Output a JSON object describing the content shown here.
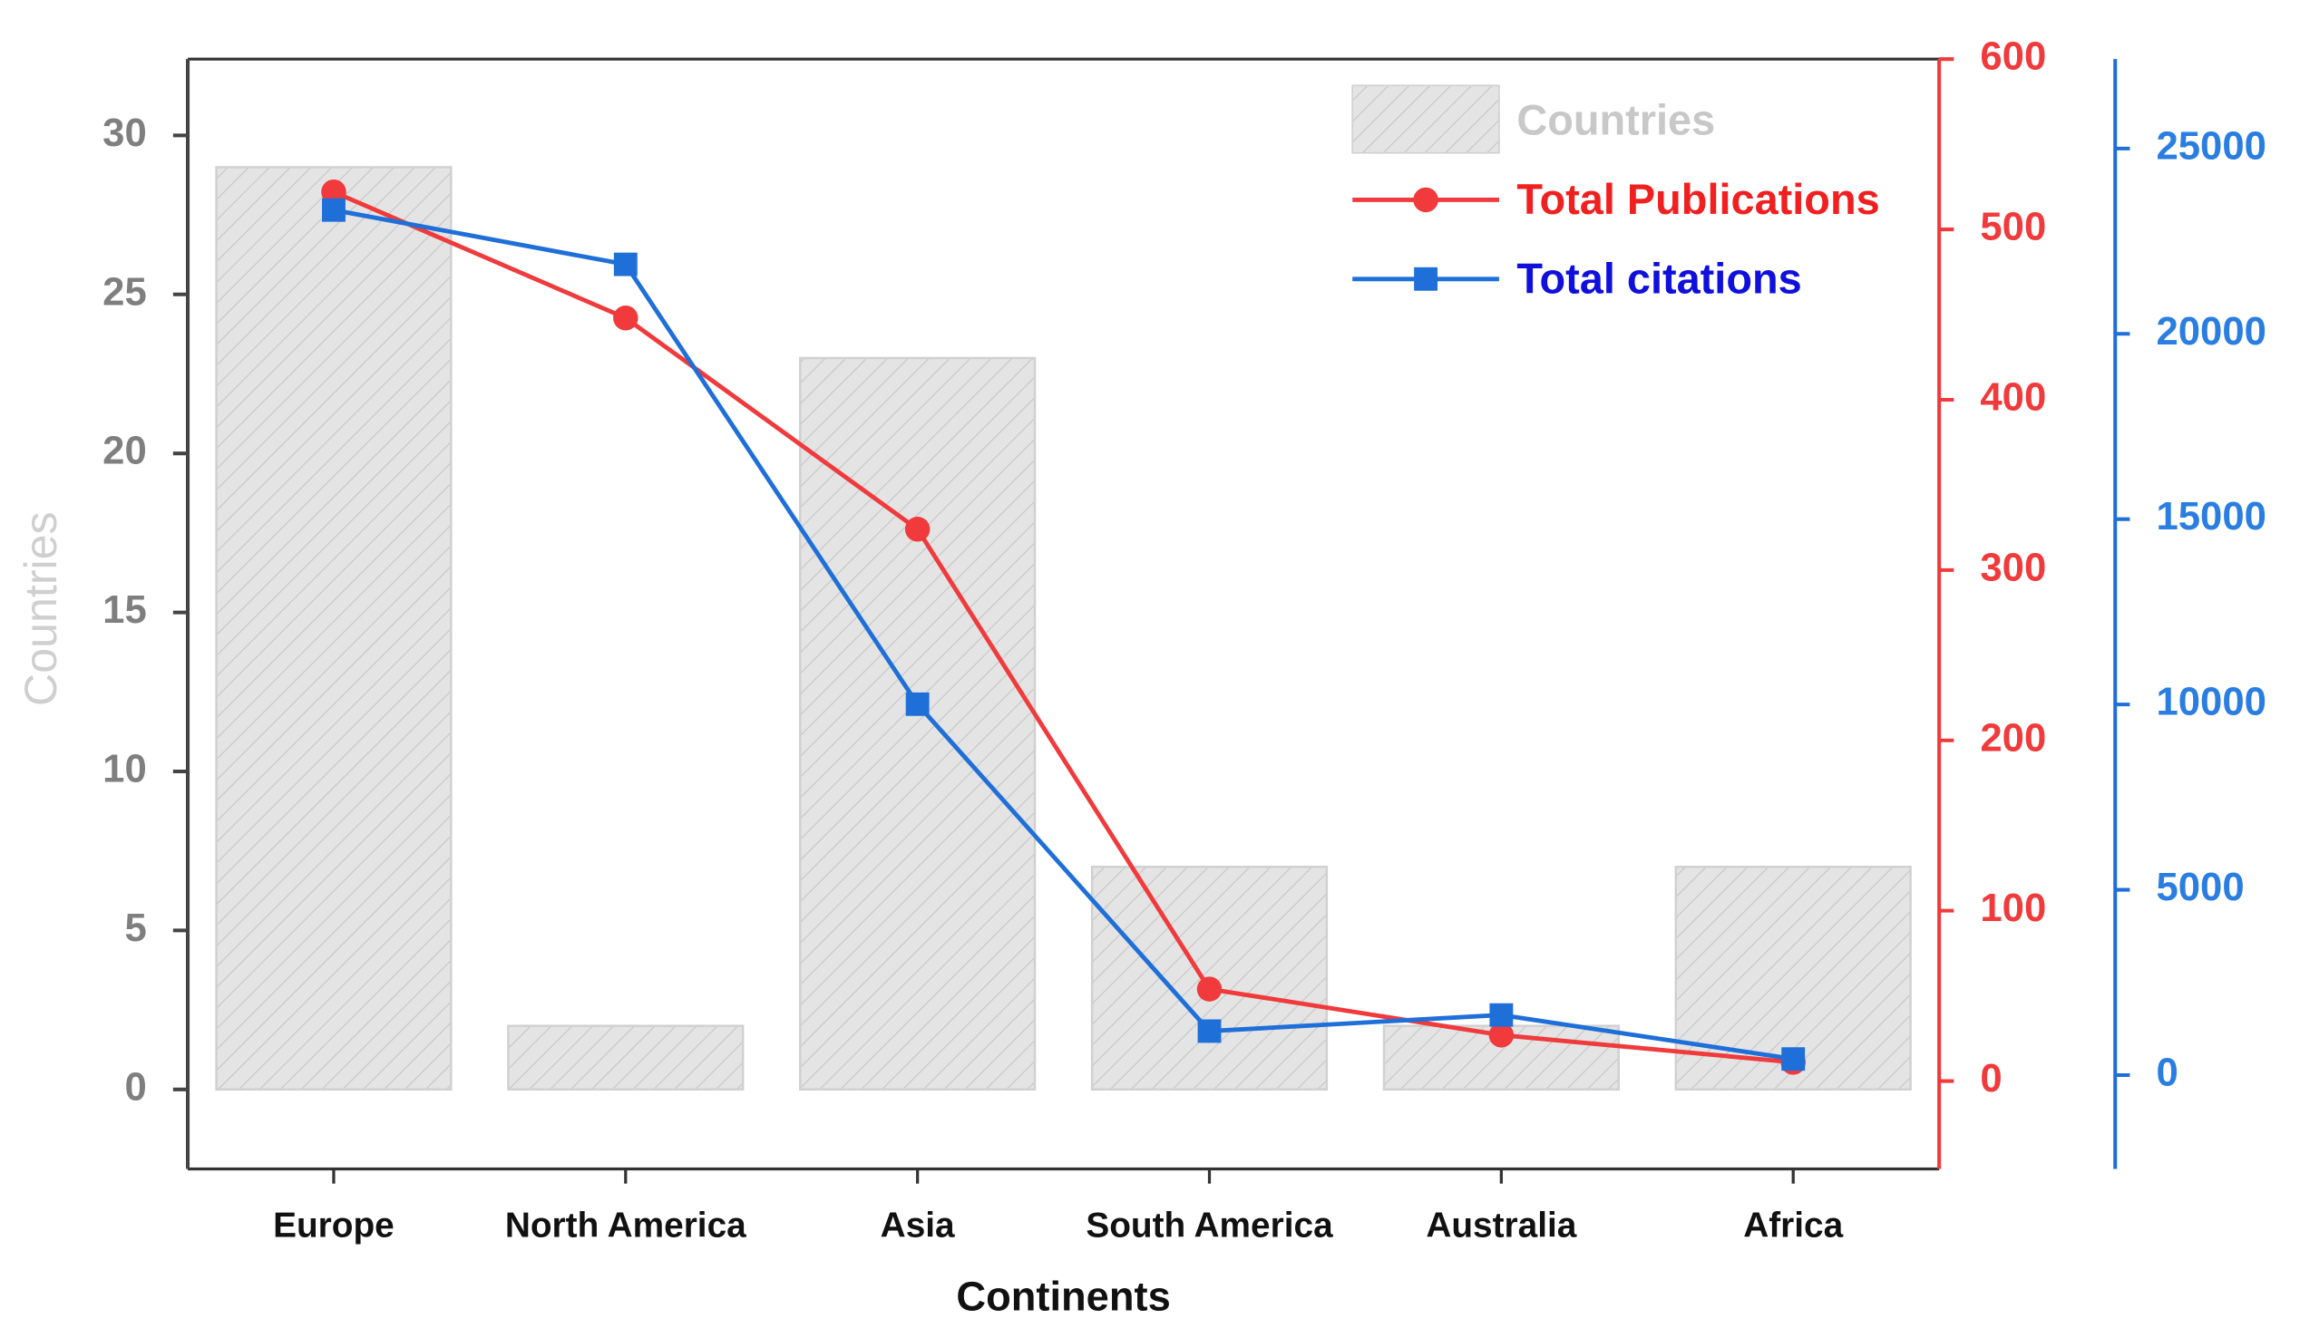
{
  "chart_data": {
    "type": "bar-line",
    "x_label": "Continents",
    "y_label": "Countries",
    "categories": [
      "Europe",
      "North America",
      "Asia",
      "South America",
      "Australia",
      "Africa"
    ],
    "series": [
      {
        "name": "Countries",
        "type": "bar",
        "axis": "y",
        "color": "#e4e4e4",
        "values": [
          29,
          2,
          23,
          7,
          2,
          7
        ]
      },
      {
        "name": "Total Publications",
        "type": "line",
        "marker": "circle",
        "axis": "y2",
        "color": "#f03a3c",
        "values": [
          522,
          448,
          324,
          54,
          27,
          11
        ]
      },
      {
        "name": "Total citations",
        "type": "line",
        "marker": "square",
        "axis": "y3",
        "color": "#1f6fd8",
        "values": [
          23340,
          21875,
          10008,
          1187,
          1622,
          435
        ]
      }
    ],
    "ylim": [
      -2.5,
      32.4
    ],
    "yticks": [
      0,
      5,
      10,
      15,
      20,
      25,
      30
    ],
    "y2lim": [
      -51.6,
      600
    ],
    "y2ticks": [
      0,
      100,
      200,
      300,
      400,
      500,
      600
    ],
    "y3lim": [
      -2532,
      27413
    ],
    "y3ticks": [
      0,
      5000,
      10000,
      15000,
      20000,
      25000
    ],
    "legend": "upper right"
  }
}
